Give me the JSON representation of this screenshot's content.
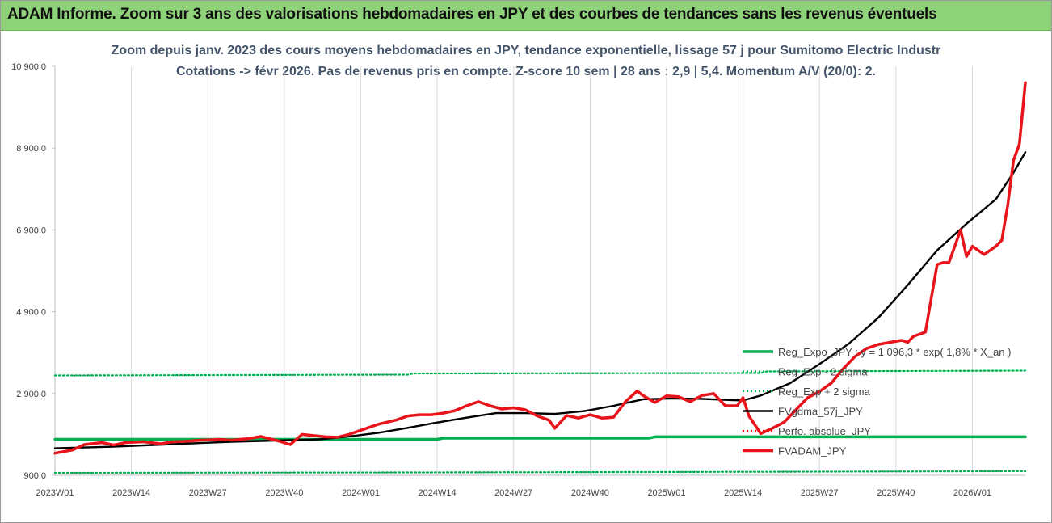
{
  "banner": {
    "title": "ADAM Informe. Zoom sur 3 ans des valorisations hebdomadaires en JPY et des courbes de tendances sans les revenus éventuels"
  },
  "chart_data": {
    "type": "line",
    "title": "Zoom depuis janv. 2023 des cours moyens hebdomadaires en JPY, tendance exponentielle, lissage 57 j pour Sumitomo Electric Industr",
    "subtitle": "Cotations -> févr 2026.  Pas de revenus pris en compte. Z-score 10 sem | 28 ans : 2,9 | 5,4. Momentum A/V (20/0): 2.",
    "xlabel": "",
    "ylabel": "",
    "ylim": [
      900,
      10900
    ],
    "yticks": [
      "900,0",
      "2 900,0",
      "4 900,0",
      "6 900,0",
      "8 900,0",
      "10 900,0"
    ],
    "ytick_values": [
      900,
      2900,
      4900,
      6900,
      8900,
      10900
    ],
    "xticks": [
      "2023W01",
      "2023W14",
      "2023W27",
      "2023W40",
      "2024W01",
      "2024W14",
      "2024W27",
      "2024W40",
      "2025W01",
      "2025W14",
      "2025W27",
      "2025W40",
      "2026W01"
    ],
    "xtick_weeks": [
      0,
      13,
      26,
      39,
      52,
      65,
      78,
      91,
      104,
      117,
      130,
      143,
      156
    ],
    "x_unit": "week index since 2023W01",
    "grid": "vertical",
    "legend_position": "right",
    "series": [
      {
        "name": "Reg_Expo_JPY : y = 1 096,3 * exp( 1,8% *  X_an )",
        "color": "#00b050",
        "style": "solid-thick",
        "x": [
          0,
          65,
          66,
          101,
          102,
          165
        ],
        "y": [
          1780,
          1780,
          1810,
          1810,
          1840,
          1840
        ]
      },
      {
        "name": "Reg_Exp - 2 sigma",
        "color": "#00b050",
        "style": "dotted",
        "x": [
          0,
          60,
          120,
          165
        ],
        "y": [
          960,
          970,
          985,
          1000
        ]
      },
      {
        "name": "Reg_Exp + 2 sigma",
        "color": "#00b050",
        "style": "dotted",
        "x": [
          0,
          60,
          61,
          120,
          121,
          165
        ],
        "y": [
          3340,
          3360,
          3390,
          3400,
          3440,
          3460
        ]
      },
      {
        "name": "FVgdma_57j_JPY",
        "color": "#000000",
        "style": "solid",
        "x": [
          0,
          10,
          20,
          30,
          40,
          45,
          50,
          55,
          60,
          65,
          70,
          75,
          80,
          85,
          90,
          95,
          100,
          105,
          110,
          115,
          117,
          120,
          125,
          130,
          135,
          140,
          145,
          150,
          155,
          160,
          163,
          165
        ],
        "y": [
          1560,
          1600,
          1660,
          1720,
          1760,
          1780,
          1850,
          1940,
          2060,
          2190,
          2310,
          2420,
          2420,
          2400,
          2470,
          2600,
          2760,
          2780,
          2770,
          2740,
          2730,
          2850,
          3150,
          3620,
          4120,
          4750,
          5550,
          6400,
          7050,
          7650,
          8300,
          8800
        ]
      },
      {
        "name": "Perfo. absolue_JPY",
        "color": "#ff0000",
        "style": "dotted",
        "x": [],
        "y": []
      },
      {
        "name": "FVADAM_JPY",
        "color": "#e8141b",
        "style": "solid-thick",
        "x": [
          0,
          3,
          5,
          8,
          10,
          12,
          15,
          18,
          20,
          22,
          25,
          28,
          30,
          33,
          35,
          38,
          40,
          42,
          44,
          46,
          48,
          50,
          52,
          55,
          58,
          60,
          62,
          64,
          66,
          68,
          70,
          72,
          74,
          76,
          78,
          80,
          82,
          84,
          85,
          87,
          89,
          91,
          93,
          95,
          97,
          99,
          100,
          102,
          104,
          106,
          108,
          110,
          112,
          114,
          116,
          117,
          118,
          120,
          122,
          124,
          126,
          128,
          130,
          132,
          134,
          136,
          138,
          140,
          142,
          144,
          145,
          146,
          148,
          150,
          151,
          152,
          153,
          154,
          155,
          156,
          158,
          160,
          161,
          162,
          163,
          164,
          165
        ],
        "y": [
          1440,
          1520,
          1650,
          1700,
          1640,
          1700,
          1720,
          1670,
          1720,
          1730,
          1760,
          1780,
          1760,
          1800,
          1850,
          1740,
          1650,
          1900,
          1870,
          1840,
          1830,
          1900,
          2000,
          2150,
          2250,
          2350,
          2380,
          2380,
          2420,
          2480,
          2600,
          2700,
          2600,
          2520,
          2550,
          2500,
          2350,
          2250,
          2050,
          2360,
          2300,
          2380,
          2300,
          2320,
          2700,
          2960,
          2850,
          2680,
          2840,
          2820,
          2700,
          2850,
          2900,
          2600,
          2600,
          2800,
          2350,
          1920,
          2050,
          2200,
          2500,
          2800,
          2950,
          3150,
          3500,
          3800,
          4000,
          4100,
          4150,
          4200,
          4150,
          4300,
          4400,
          6050,
          6100,
          6100,
          6500,
          6900,
          6250,
          6500,
          6300,
          6500,
          6650,
          7500,
          8600,
          9000,
          10500
        ]
      }
    ]
  }
}
